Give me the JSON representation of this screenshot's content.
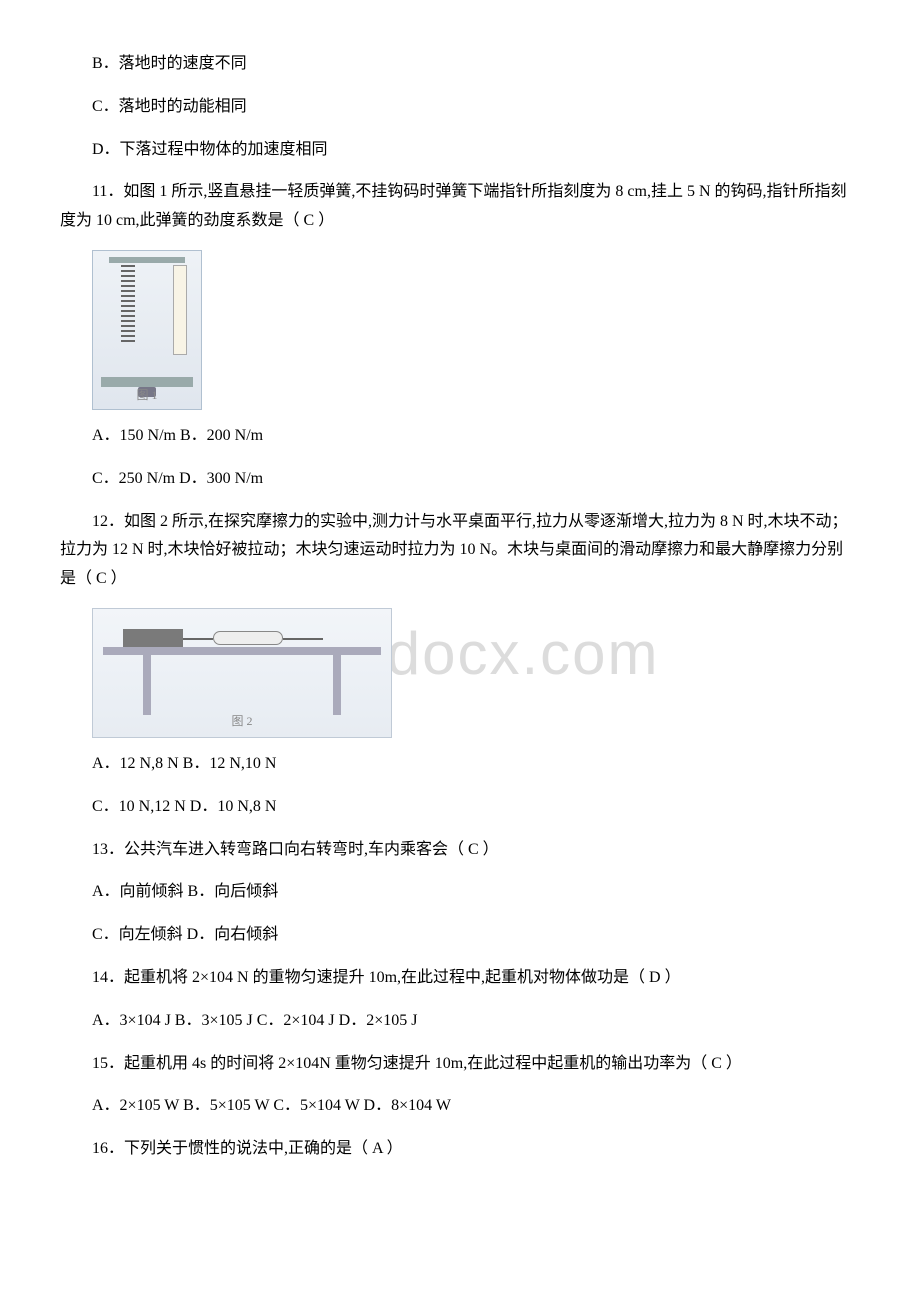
{
  "watermark": "www.bdocx.com",
  "q10b": "B．落地时的速度不同",
  "q10c": "C．落地时的动能相同",
  "q10d": "D．下落过程中物体的加速度相同",
  "q11stem": "11．如图 1 所示,竖直悬挂一轻质弹簧,不挂钩码时弹簧下端指针所指刻度为 8 cm,挂上 5 N 的钩码,指针所指刻度为 10 cm,此弹簧的劲度系数是（ C ）",
  "fig1caption": "图 1",
  "q11ab": "A．150 N/m B．200 N/m",
  "q11cd": "C．250 N/m D．300 N/m",
  "q12stem": "12．如图 2 所示,在探究摩擦力的实验中,测力计与水平桌面平行,拉力从零逐渐增大,拉力为 8 N 时,木块不动；拉力为 12 N 时,木块恰好被拉动；木块匀速运动时拉力为 10 N。木块与桌面间的滑动摩擦力和最大静摩擦力分别是（ C ）",
  "fig2caption": "图 2",
  "q12ab": "A．12 N,8 N B．12 N,10 N",
  "q12cd": "C．10 N,12 N D．10 N,8 N",
  "q13stem": "13．公共汽车进入转弯路口向右转弯时,车内乘客会（ C ）",
  "q13ab": "A．向前倾斜 B．向后倾斜",
  "q13cd": "C．向左倾斜 D．向右倾斜",
  "q14stem": "14．起重机将 2×104 N 的重物匀速提升 10m,在此过程中,起重机对物体做功是（  D ）",
  "q14abcd": "A．3×104 J B．3×105 J C．2×104 J D．2×105 J",
  "q15stem": "15．起重机用 4s 的时间将 2×104N 重物匀速提升 10m,在此过程中起重机的输出功率为（ C ）",
  "q15abcd": "A．2×105 W B．5×105 W C．5×104 W D．8×104 W",
  "q16stem": "16．下列关于惯性的说法中,正确的是（ A ）"
}
